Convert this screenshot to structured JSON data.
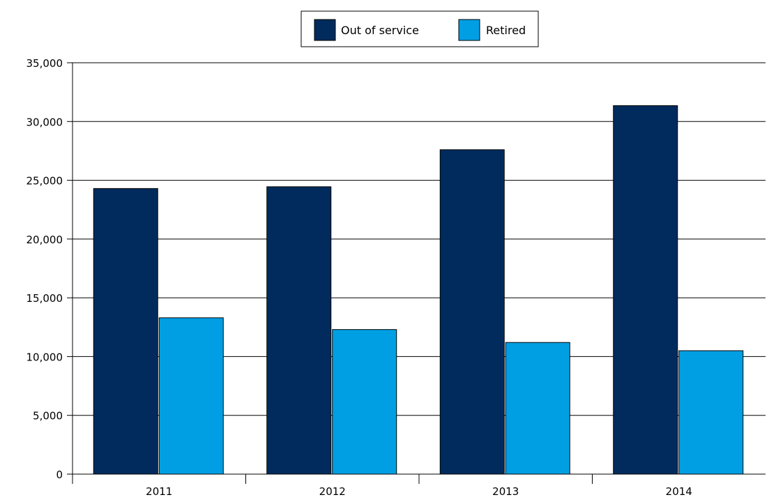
{
  "chart_data": {
    "type": "bar",
    "title": "",
    "xlabel": "",
    "ylabel": "",
    "categories": [
      "2011",
      "2012",
      "2013",
      "2014"
    ],
    "series": [
      {
        "name": "Out of service",
        "color": "#002b5c",
        "values": [
          24300,
          24450,
          27600,
          31350
        ]
      },
      {
        "name": "Retired",
        "color": "#009fe3",
        "values": [
          13300,
          12300,
          11200,
          10500
        ]
      }
    ],
    "ylim": [
      0,
      35000
    ],
    "yticks": [
      0,
      5000,
      10000,
      15000,
      20000,
      25000,
      30000,
      35000
    ],
    "ytick_labels": [
      "0",
      "5,000",
      "10,000",
      "15,000",
      "20,000",
      "25,000",
      "30,000",
      "35,000"
    ],
    "grid": true,
    "legend_position": "top-center"
  }
}
